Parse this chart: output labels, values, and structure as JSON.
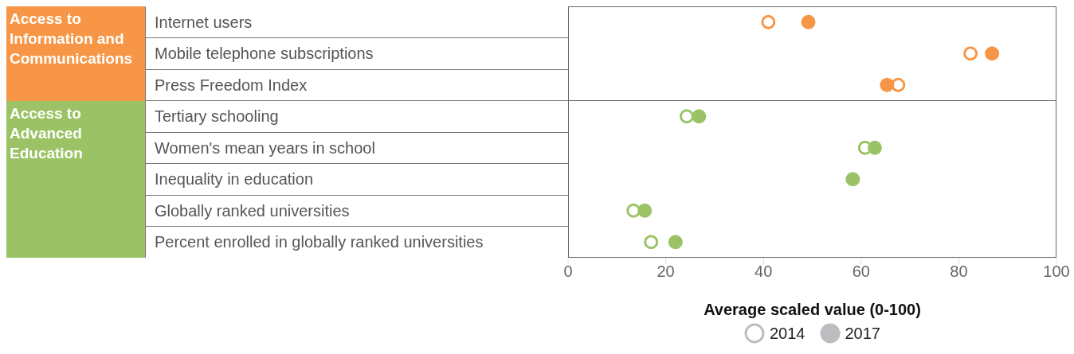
{
  "chart_data": {
    "type": "scatter",
    "categories": [
      "Internet users",
      "Mobile telephone subscriptions",
      "Press Freedom Index",
      "Tertiary schooling",
      "Women's mean years in school",
      "Inequality in education",
      "Globally ranked universities",
      "Percent enrolled in globally ranked universities"
    ],
    "orientation": "horizontal",
    "xlabel": "Average scaled value (0-100)",
    "xlim": [
      0,
      100
    ],
    "xticks": [
      0,
      20,
      40,
      60,
      80,
      100
    ],
    "grid": false,
    "legend": "bottom",
    "marker": "circle",
    "annotations": [
      "Access to Information and Communications",
      "Access to Advanced Education"
    ],
    "series": [
      {
        "name": "2014",
        "values": [
          41.0,
          82.4,
          67.6,
          24.3,
          60.8,
          null,
          13.4,
          17.0
        ],
        "colors": [
          "#f79646",
          "#f79646",
          "#f79646",
          "#9bc365",
          "#9bc365",
          "#9bc365",
          "#9bc365",
          "#9bc365"
        ]
      },
      {
        "name": "2017",
        "values": [
          49.2,
          86.8,
          65.3,
          26.8,
          62.8,
          58.3,
          15.7,
          22.0
        ],
        "colors": [
          "#f79646",
          "#f79646",
          "#f79646",
          "#9bc365",
          "#9bc365",
          "#9bc365",
          "#9bc365",
          "#9bc365"
        ]
      }
    ]
  }
}
